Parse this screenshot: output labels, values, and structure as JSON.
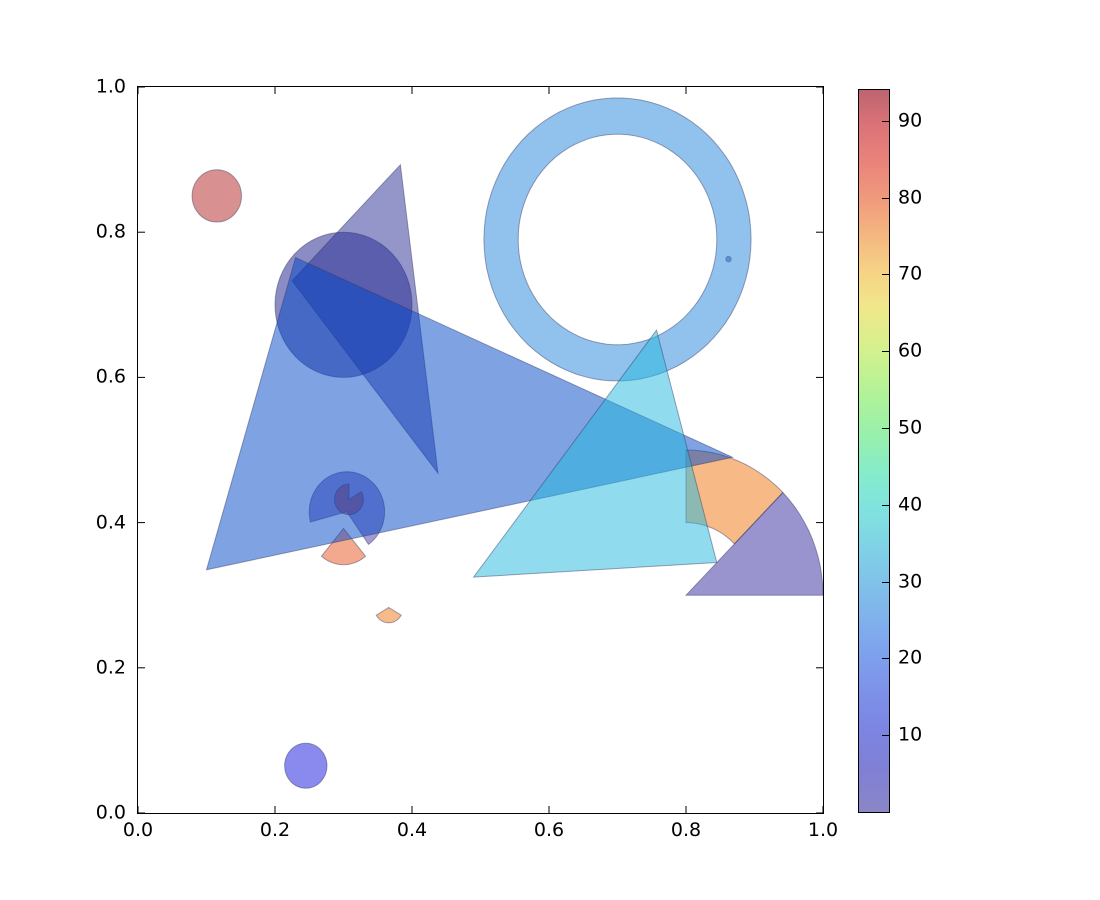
{
  "chart_data": {
    "type": "patch-collection-plot",
    "title": "",
    "xlabel": "",
    "ylabel": "",
    "xlim": [
      0.0,
      1.0
    ],
    "ylim": [
      0.0,
      1.0
    ],
    "x_ticks": [
      "0.0",
      "0.2",
      "0.4",
      "0.6",
      "0.8",
      "1.0"
    ],
    "y_ticks": [
      "0.0",
      "0.2",
      "0.4",
      "0.6",
      "0.8",
      "1.0"
    ],
    "grid": false,
    "alpha": 0.5,
    "edge_color": "rgba(50,55,95,0.45)",
    "colormap": "jet",
    "shapes": [
      {
        "name": "circle-red",
        "type": "circle",
        "cx": 0.115,
        "cy": 0.85,
        "r": 0.036,
        "color": "#B22222",
        "value": 84
      },
      {
        "name": "circle-blue",
        "type": "circle",
        "cx": 0.245,
        "cy": 0.065,
        "r": 0.031,
        "color": "#1515DD",
        "value": 13
      },
      {
        "name": "circle-tiny-dot",
        "type": "circle",
        "cx": 0.862,
        "cy": 0.763,
        "r": 0.004,
        "color": "#283593",
        "value": 6
      },
      {
        "name": "wedge-pacman-purple",
        "type": "wedge",
        "cx": 0.305,
        "cy": 0.415,
        "r": 0.055,
        "theta1": 305,
        "theta2": 195,
        "width": null,
        "color": "#4838A8",
        "value": 9
      },
      {
        "name": "wedge-small-crimson",
        "type": "wedge",
        "cx": 0.308,
        "cy": 0.432,
        "r": 0.021,
        "theta1": 90,
        "theta2": 30,
        "width": null,
        "color": "#B03030",
        "value": 82
      },
      {
        "name": "wedge-small-orange",
        "type": "wedge",
        "cx": 0.3,
        "cy": 0.392,
        "r": 0.05,
        "theta1": 230,
        "theta2": 310,
        "width": null,
        "color": "#E8541E",
        "value": 76
      },
      {
        "name": "wedge-tiny-orange",
        "type": "wedge",
        "cx": 0.366,
        "cy": 0.283,
        "r": 0.021,
        "theta1": 210,
        "theta2": 330,
        "width": null,
        "color": "#EE7518",
        "value": 70
      },
      {
        "name": "wedge-full-circle-dark",
        "type": "circle",
        "cx": 0.3,
        "cy": 0.7,
        "r": 0.1,
        "color": "#1A1A8C",
        "value": 4
      },
      {
        "name": "wedge-ring",
        "type": "wedge",
        "cx": 0.7,
        "cy": 0.79,
        "r": 0.195,
        "theta1": 0,
        "theta2": 360,
        "width": 0.05,
        "color": "#2385DD",
        "value": 24
      },
      {
        "name": "wedge-ring-sector-orange",
        "type": "wedge",
        "cx": 0.8,
        "cy": 0.3,
        "r": 0.2,
        "theta1": 45,
        "theta2": 90,
        "width": 0.1,
        "color": "#EF750D",
        "value": 70
      },
      {
        "name": "wedge-sector-purple",
        "type": "wedge",
        "cx": 0.8,
        "cy": 0.3,
        "r": 0.2,
        "theta1": 0,
        "theta2": 45,
        "width": null,
        "color": "#342A9E",
        "value": 8
      },
      {
        "name": "triangle-slate",
        "type": "polygon",
        "points": [
          [
            0.225,
            0.733
          ],
          [
            0.383,
            0.893
          ],
          [
            0.438,
            0.468
          ]
        ],
        "color": "#2A2E96",
        "value": 7
      },
      {
        "name": "triangle-blue-large",
        "type": "polygon",
        "points": [
          [
            0.1,
            0.335
          ],
          [
            0.23,
            0.765
          ],
          [
            0.868,
            0.49
          ]
        ],
        "color": "#0045C7",
        "value": 18
      },
      {
        "name": "triangle-cyan",
        "type": "polygon",
        "points": [
          [
            0.49,
            0.325
          ],
          [
            0.845,
            0.345
          ],
          [
            0.757,
            0.665
          ]
        ],
        "color": "#21B7DD",
        "value": 34
      }
    ],
    "colorbar": {
      "vmin": 0,
      "vmax": 94,
      "ticks": [
        10,
        20,
        30,
        40,
        50,
        60,
        70,
        80,
        90
      ],
      "stops": [
        {
          "pos": 0.0,
          "color": "#8A87C6"
        },
        {
          "pos": 0.06,
          "color": "#7F7FD6"
        },
        {
          "pos": 0.12,
          "color": "#7C86E3"
        },
        {
          "pos": 0.18,
          "color": "#7D95EA"
        },
        {
          "pos": 0.24,
          "color": "#7FA8ED"
        },
        {
          "pos": 0.3,
          "color": "#80BCEA"
        },
        {
          "pos": 0.36,
          "color": "#7FD0E7"
        },
        {
          "pos": 0.42,
          "color": "#80E3DF"
        },
        {
          "pos": 0.47,
          "color": "#85ECCB"
        },
        {
          "pos": 0.52,
          "color": "#97F0AC"
        },
        {
          "pos": 0.58,
          "color": "#B2F298"
        },
        {
          "pos": 0.64,
          "color": "#D4F18D"
        },
        {
          "pos": 0.7,
          "color": "#F0E78A"
        },
        {
          "pos": 0.75,
          "color": "#F6D285"
        },
        {
          "pos": 0.8,
          "color": "#F4B680"
        },
        {
          "pos": 0.85,
          "color": "#F09A7C"
        },
        {
          "pos": 0.9,
          "color": "#EA837B"
        },
        {
          "pos": 0.95,
          "color": "#DC7378"
        },
        {
          "pos": 1.0,
          "color": "#BD6470"
        }
      ]
    }
  }
}
